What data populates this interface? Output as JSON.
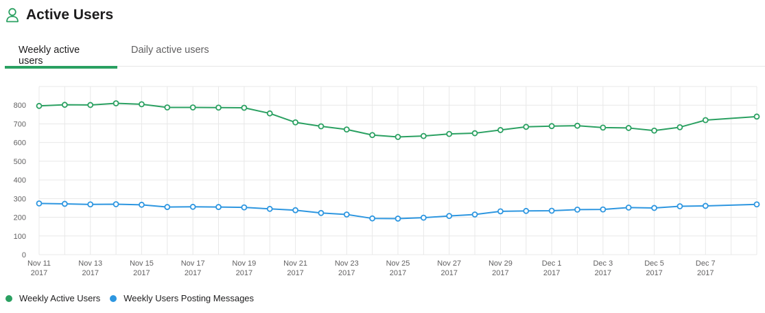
{
  "header": {
    "title": "Active Users",
    "icon": "user-icon",
    "accent": "#2aa061"
  },
  "tabs": [
    {
      "label": "Weekly active users",
      "active": true
    },
    {
      "label": "Daily active users",
      "active": false
    }
  ],
  "chart_data": {
    "type": "line",
    "title": "",
    "xlabel": "",
    "ylabel": "",
    "ylim": [
      0,
      900
    ],
    "yticks": [
      0,
      100,
      200,
      300,
      400,
      500,
      600,
      700,
      800
    ],
    "grid": true,
    "legend": "bottom-left",
    "x": [
      "2017-11-11",
      "2017-11-12",
      "2017-11-13",
      "2017-11-14",
      "2017-11-15",
      "2017-11-16",
      "2017-11-17",
      "2017-11-18",
      "2017-11-19",
      "2017-11-20",
      "2017-11-21",
      "2017-11-22",
      "2017-11-23",
      "2017-11-24",
      "2017-11-25",
      "2017-11-26",
      "2017-11-27",
      "2017-11-28",
      "2017-11-29",
      "2017-11-30",
      "2017-12-01",
      "2017-12-02",
      "2017-12-03",
      "2017-12-04",
      "2017-12-05",
      "2017-12-06",
      "2017-12-07",
      "2017-12-09"
    ],
    "xlim": [
      "2017-11-11",
      "2017-12-09"
    ],
    "xtick_labels": [
      {
        "date": "2017-11-11",
        "line1": "Nov 11",
        "line2": "2017"
      },
      {
        "date": "2017-11-13",
        "line1": "Nov 13",
        "line2": "2017"
      },
      {
        "date": "2017-11-15",
        "line1": "Nov 15",
        "line2": "2017"
      },
      {
        "date": "2017-11-17",
        "line1": "Nov 17",
        "line2": "2017"
      },
      {
        "date": "2017-11-19",
        "line1": "Nov 19",
        "line2": "2017"
      },
      {
        "date": "2017-11-21",
        "line1": "Nov 21",
        "line2": "2017"
      },
      {
        "date": "2017-11-23",
        "line1": "Nov 23",
        "line2": "2017"
      },
      {
        "date": "2017-11-25",
        "line1": "Nov 25",
        "line2": "2017"
      },
      {
        "date": "2017-11-27",
        "line1": "Nov 27",
        "line2": "2017"
      },
      {
        "date": "2017-11-29",
        "line1": "Nov 29",
        "line2": "2017"
      },
      {
        "date": "2017-12-01",
        "line1": "Dec 1",
        "line2": "2017"
      },
      {
        "date": "2017-12-03",
        "line1": "Dec 3",
        "line2": "2017"
      },
      {
        "date": "2017-12-05",
        "line1": "Dec 5",
        "line2": "2017"
      },
      {
        "date": "2017-12-07",
        "line1": "Dec 7",
        "line2": "2017"
      }
    ],
    "series": [
      {
        "name": "Weekly Active Users",
        "color": "#2aa061",
        "values": [
          796,
          802,
          801,
          810,
          805,
          788,
          788,
          787,
          786,
          756,
          708,
          687,
          670,
          640,
          630,
          635,
          646,
          650,
          667,
          684,
          688,
          690,
          680,
          678,
          664,
          682,
          720,
          739
        ]
      },
      {
        "name": "Weekly Users Posting Messages",
        "color": "#2d96e0",
        "values": [
          274,
          272,
          269,
          270,
          267,
          255,
          256,
          255,
          253,
          245,
          238,
          223,
          215,
          194,
          193,
          198,
          207,
          215,
          232,
          234,
          235,
          241,
          242,
          252,
          250,
          259,
          261,
          269
        ]
      }
    ]
  }
}
